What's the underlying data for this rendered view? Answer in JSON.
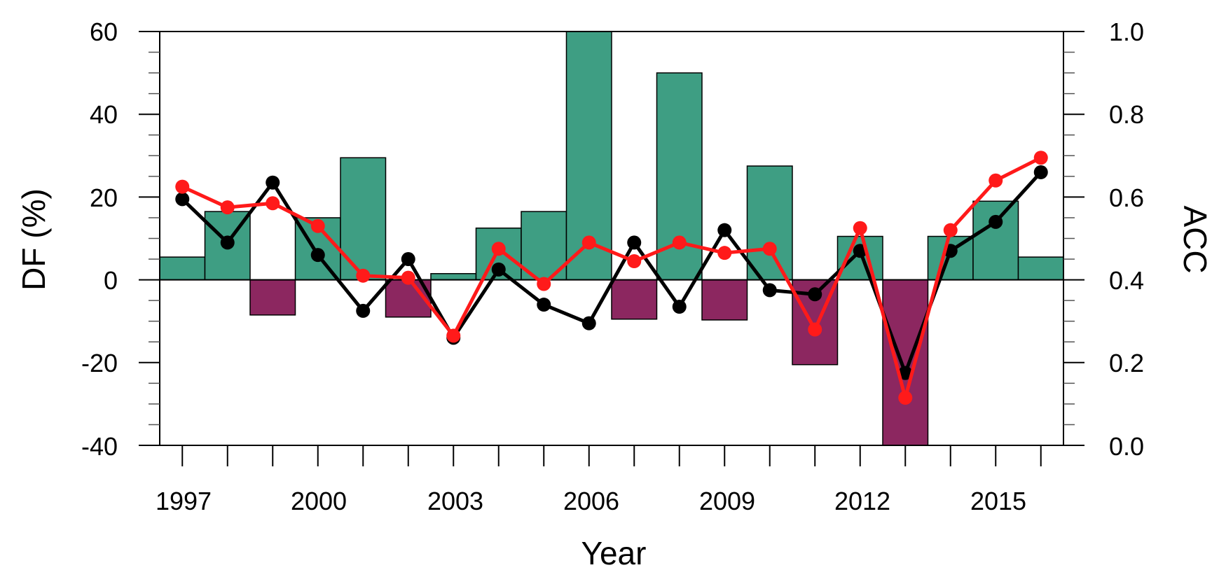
{
  "chart_data": {
    "type": "bar",
    "xlabel": "Year",
    "ylabel_left": "DF (%)",
    "ylabel_right": "ACC",
    "x_ticks": [
      "1997",
      "2000",
      "2003",
      "2006",
      "2009",
      "2012",
      "2015"
    ],
    "y_left_ticks": [
      "60",
      "40",
      "20",
      "0",
      "-20",
      "-40"
    ],
    "y_right_ticks": [
      "1.0",
      "0.8",
      "0.6",
      "0.4",
      "0.2",
      "0.0"
    ],
    "ylim_left": [
      -40,
      60
    ],
    "ylim_right": [
      0.0,
      1.0
    ],
    "xlim": [
      1996.5,
      2016.5
    ],
    "grid": false,
    "colors": {
      "positive_bar": "#3e9e83",
      "negative_bar": "#8c2760",
      "black_line": "#000000",
      "red_line": "#ff1a1a"
    },
    "categories": [
      1997,
      1998,
      1999,
      2000,
      2001,
      2002,
      2003,
      2004,
      2005,
      2006,
      2007,
      2008,
      2009,
      2010,
      2011,
      2012,
      2013,
      2014,
      2015,
      2016
    ],
    "bars": [
      5.5,
      16.5,
      -8.5,
      15,
      29.5,
      -9,
      1.5,
      12.5,
      16.5,
      60,
      -9.5,
      50,
      -9.7,
      27.5,
      -20.5,
      10.5,
      -40,
      10.5,
      19,
      5.5
    ],
    "series": [
      {
        "axis": "right",
        "color": "#000000",
        "values": [
          0.595,
          0.49,
          0.635,
          0.46,
          0.325,
          0.45,
          0.26,
          0.425,
          0.34,
          0.295,
          0.49,
          0.335,
          0.52,
          0.375,
          0.365,
          0.47,
          0.175,
          0.47,
          0.54,
          0.66
        ]
      },
      {
        "axis": "right",
        "color": "#ff1a1a",
        "values": [
          0.625,
          0.575,
          0.585,
          0.53,
          0.41,
          0.405,
          0.265,
          0.475,
          0.39,
          0.49,
          0.445,
          0.49,
          0.465,
          0.475,
          0.28,
          0.525,
          0.115,
          0.52,
          0.64,
          0.695
        ]
      }
    ]
  }
}
